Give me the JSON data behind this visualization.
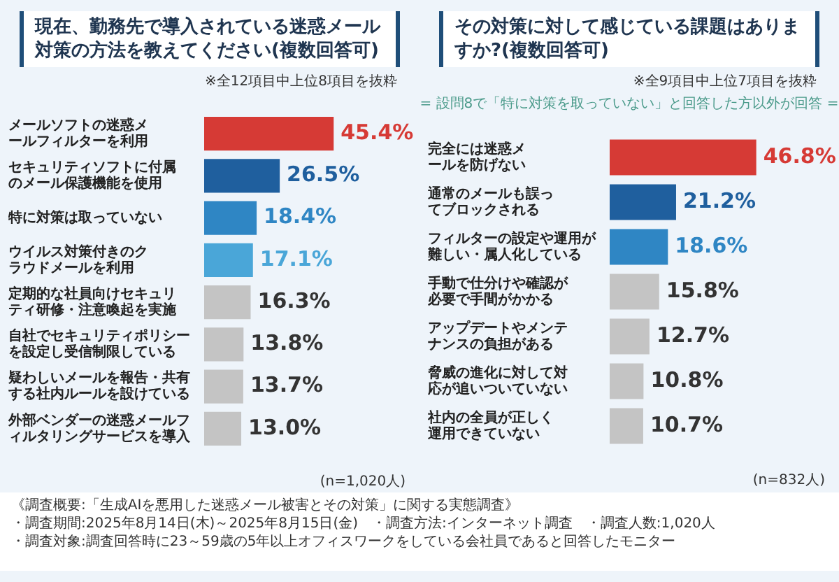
{
  "chart_data": [
    {
      "type": "bar",
      "orientation": "horizontal",
      "title": "現在、勤務先で導入されている迷惑メール対策の方法を教えてください(複数回答可)",
      "subtitle": "※全12項目中上位8項目を抜粋",
      "categories": [
        "メールソフトの迷惑メールフィルターを利用",
        "セキュリティソフトに付属のメール保護機能を使用",
        "特に対策は取っていない",
        "ウイルス対策付きのクラウドメールを利用",
        "定期的な社員向けセキュリティ研修・注意喚起を実施",
        "自社でセキュリティポリシーを設定し受信制限している",
        "疑わしいメールを報告・共有する社内ルールを設けている",
        "外部ベンダーの迷惑メールフィルタリングサービスを導入"
      ],
      "values": [
        45.4,
        26.5,
        18.4,
        17.1,
        16.3,
        13.8,
        13.7,
        13.0
      ],
      "value_labels": [
        "45.4%",
        "26.5%",
        "18.4%",
        "17.1%",
        "16.3%",
        "13.8%",
        "13.7%",
        "13.0%"
      ],
      "colors": [
        "#d63a35",
        "#1f5f9e",
        "#2f86c4",
        "#4aa6d8",
        "#c4c4c4",
        "#c4c4c4",
        "#c4c4c4",
        "#c4c4c4"
      ],
      "tick_labels": "y",
      "annotations": [
        "(n=1,020人)",
        "《調査概要:「生成AIを悪用した迷惑メール被害とその対策」に関する実態調査》",
        "・調査期間:2025年8月14日(木)～2025年8月15日(金)　・調査方法:インターネット調査　・調査人数:1,020人",
        "・調査対象:調査回答時に23～59歳の5年以上オフィスワークをしている会社員であると回答したモニター"
      ]
    },
    {
      "type": "bar",
      "orientation": "horizontal",
      "title": "その対策に対して感じている課題はありますか?(複数回答可)",
      "subtitle": "※全9項目中上位7項目を抜粋",
      "categories": [
        "完全には迷惑メールを防げない",
        "通常のメールも誤ってブロックされる",
        "フィルターの設定や運用が難しい・属人化している",
        "手動で仕分けや確認が必要で手間がかかる",
        "アップデートやメンテナンスの負担がある",
        "脅威の進化に対して対応が追いついていない",
        "社内の全員が正しく運用できていない"
      ],
      "values": [
        46.8,
        21.2,
        18.6,
        15.8,
        12.7,
        10.8,
        10.7
      ],
      "value_labels": [
        "46.8%",
        "21.2%",
        "18.6%",
        "15.8%",
        "12.7%",
        "10.8%",
        "10.7%"
      ],
      "colors": [
        "#d63a35",
        "#1f5f9e",
        "#2f86c4",
        "#c4c4c4",
        "#c4c4c4",
        "#c4c4c4",
        "#c4c4c4"
      ],
      "tick_labels": "y",
      "annotations": [
        "= 設問8で「特に対策を取っていない」と回答した方以外が回答 =",
        "(n=832人)"
      ]
    }
  ]
}
